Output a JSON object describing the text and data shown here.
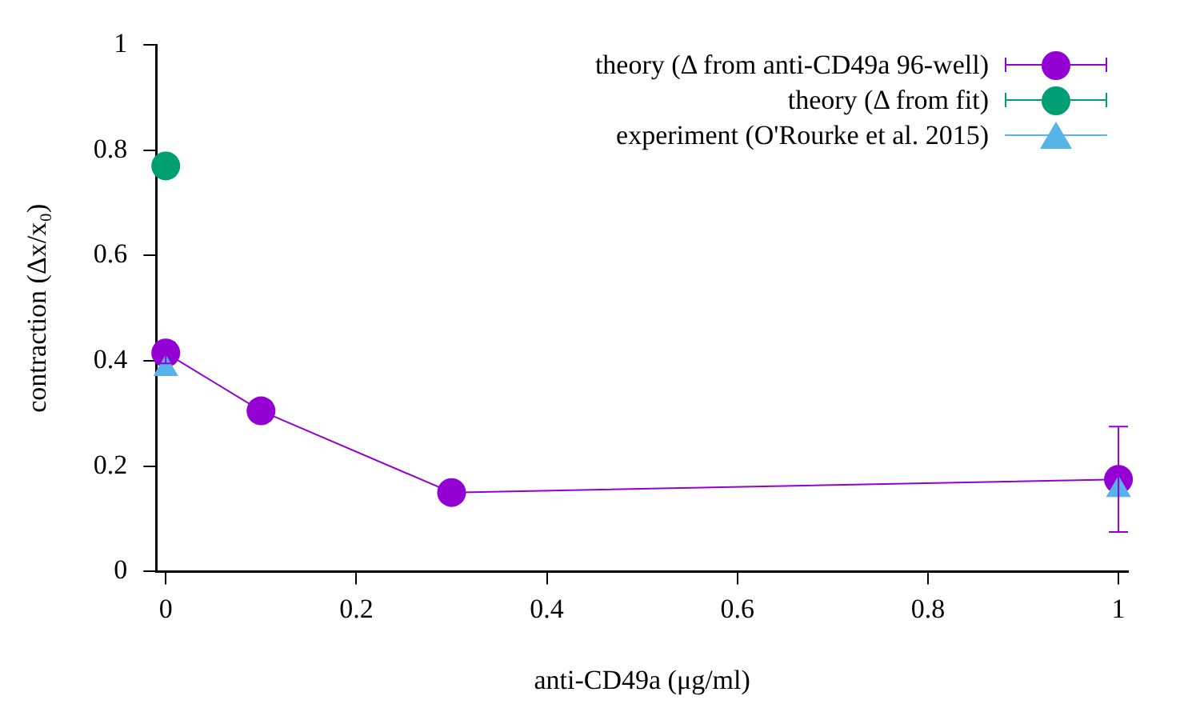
{
  "chart_data": {
    "type": "line",
    "xlabel": "anti-CD49a (μg/ml)",
    "ylabel": "contraction (Δx/x₀)",
    "xlim": [
      -0.01,
      1.01
    ],
    "xticks": [
      0,
      0.2,
      0.4,
      0.6,
      0.8,
      1
    ],
    "ylim": [
      0,
      1
    ],
    "yticks": [
      0,
      0.2,
      0.4,
      0.6,
      0.8,
      1
    ],
    "grid": false,
    "legend": "top right",
    "series": [
      {
        "name": "theory (Δ from anti-CD49a 96-well)",
        "marker": "circle",
        "color": "#9400d3",
        "x": [
          0,
          0.1,
          0.3,
          1
        ],
        "values": [
          0.415,
          0.305,
          0.15,
          0.175
        ],
        "errors": [
          0.02,
          null,
          null,
          0.1
        ]
      },
      {
        "name": "theory (Δ from fit)",
        "type": "scatter",
        "marker": "circle",
        "color": "#009e73",
        "x": [
          0
        ],
        "values": [
          0.77
        ],
        "errors": [
          null
        ]
      },
      {
        "name": "experiment (O'Rourke et al. 2015)",
        "type": "scatter",
        "marker": "triangle",
        "color": "#56b4e9",
        "x": [
          0,
          1
        ],
        "values": [
          0.385,
          0.155
        ]
      }
    ]
  }
}
